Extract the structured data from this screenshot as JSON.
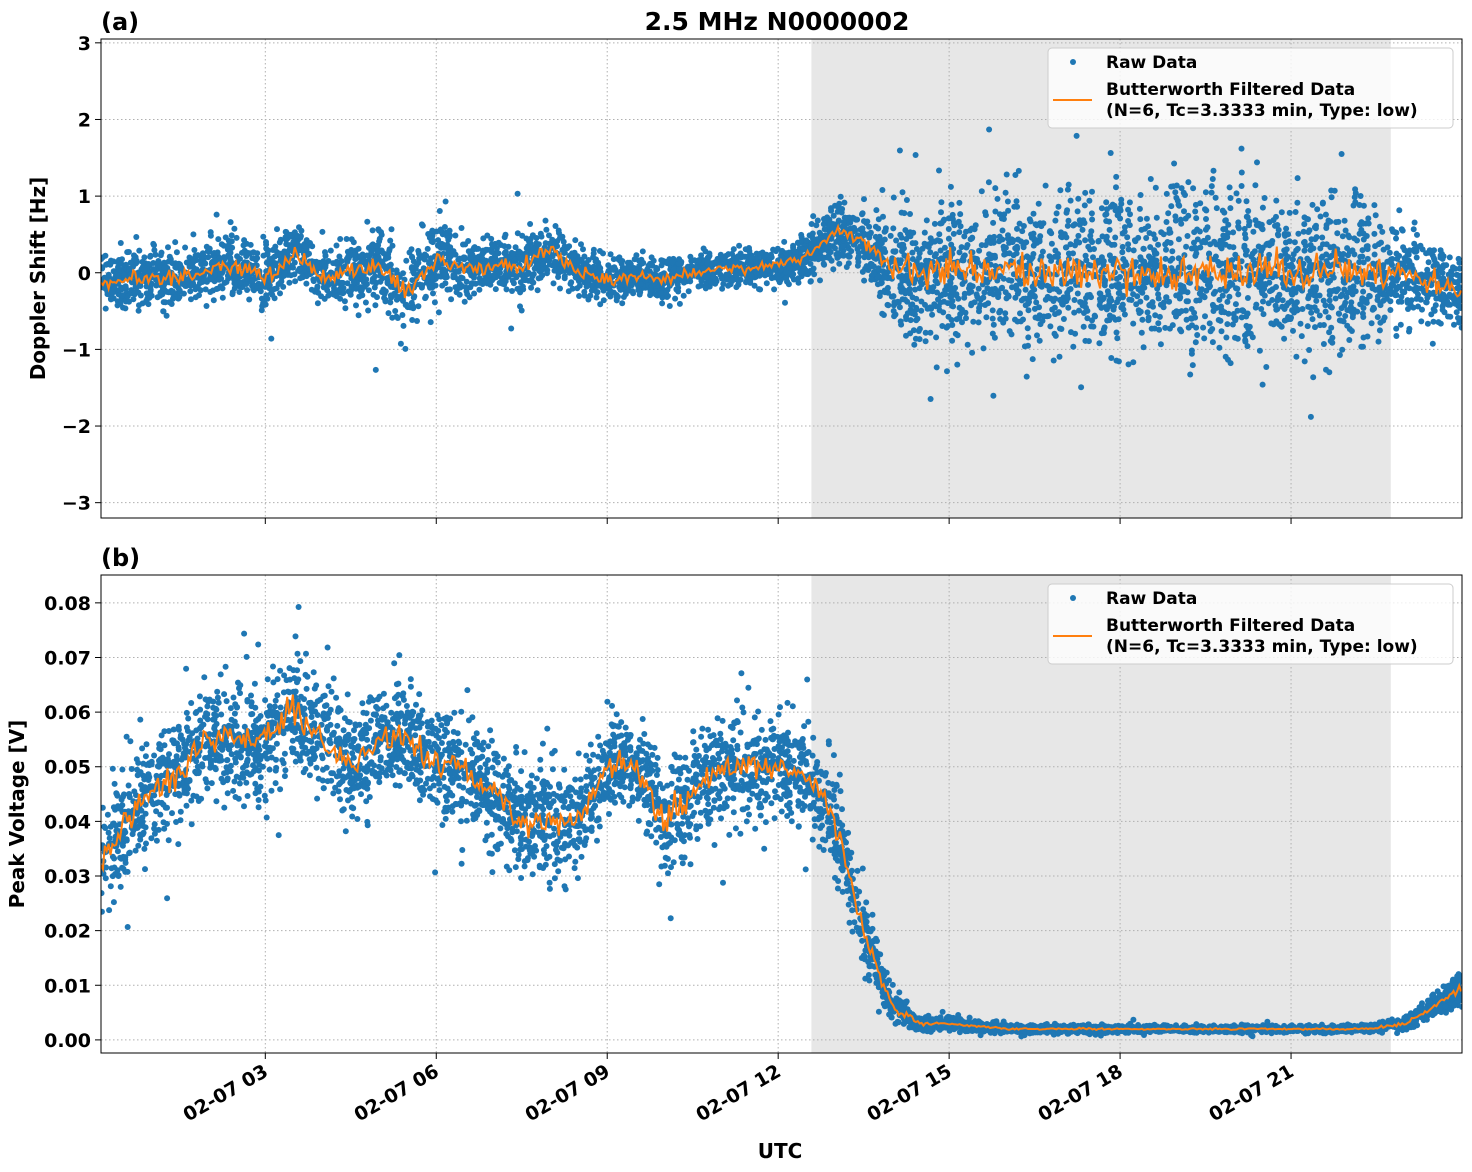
{
  "figure_title": "2.5 MHz N0000002",
  "xlabel": "UTC",
  "colors": {
    "raw": "#1f77b4",
    "filtered": "#ff7f0e",
    "shade": "#e7e7e7"
  },
  "chart_data": [
    {
      "type": "scatter",
      "panel_label": "(a)",
      "ylabel": "Doppler Shift [Hz]",
      "xlim": [
        "02-07 00:07",
        "02-08 00:00"
      ],
      "ylim": [
        -3.2,
        3.05
      ],
      "yticks": [
        -3,
        -2,
        -1,
        0,
        1,
        2,
        3
      ],
      "ytick_labels": [
        "−3",
        "−2",
        "−1",
        "0",
        "1",
        "2",
        "3"
      ],
      "xticks": [
        "02-07 03:00",
        "02-07 06:00",
        "02-07 09:00",
        "02-07 12:00",
        "02-07 15:00",
        "02-07 18:00",
        "02-07 21:00"
      ],
      "xtick_labels": [
        "02-07 03",
        "02-07 06",
        "02-07 09",
        "02-07 12",
        "02-07 15",
        "02-07 18",
        "02-07 21"
      ],
      "grid": true,
      "legend_position": "top-right",
      "legend": [
        "Raw Data",
        "Butterworth Filtered Data",
        "(N=6, Tc=3.3333 min, Type: low)"
      ],
      "shaded_span": [
        "02-07 12:35",
        "02-07 22:45"
      ],
      "x": [
        "00:00",
        "00:30",
        "01:00",
        "01:30",
        "02:00",
        "02:30",
        "03:00",
        "03:30",
        "04:00",
        "04:30",
        "05:00",
        "05:30",
        "06:00",
        "06:30",
        "07:00",
        "07:30",
        "08:00",
        "08:30",
        "09:00",
        "09:30",
        "10:00",
        "10:30",
        "11:00",
        "11:30",
        "12:00",
        "12:30",
        "13:00",
        "13:30",
        "14:00",
        "14:30",
        "15:00",
        "15:30",
        "16:00",
        "16:30",
        "17:00",
        "17:30",
        "18:00",
        "18:30",
        "19:00",
        "19:30",
        "20:00",
        "20:30",
        "21:00",
        "21:30",
        "22:00",
        "22:30",
        "23:00",
        "23:30",
        "24:00"
      ],
      "series": [
        {
          "name": "Butterworth Filtered Data",
          "kind": "line",
          "values": [
            -0.15,
            -0.1,
            -0.05,
            -0.1,
            0.05,
            0.1,
            -0.1,
            0.25,
            -0.05,
            0.05,
            0.1,
            -0.3,
            0.2,
            0.05,
            0.1,
            0.1,
            0.3,
            0.0,
            -0.1,
            -0.05,
            -0.1,
            0.0,
            0.05,
            0.05,
            0.1,
            0.2,
            0.55,
            0.4,
            0.1,
            0.0,
            0.05,
            0.0,
            0.1,
            -0.05,
            0.05,
            0.0,
            0.05,
            -0.05,
            0.0,
            0.1,
            0.0,
            0.05,
            -0.05,
            0.05,
            0.0,
            0.05,
            0.0,
            -0.1,
            -0.3
          ]
        },
        {
          "name": "Raw Data",
          "kind": "scatter",
          "approx_spread": [
            0.45,
            0.45,
            0.5,
            0.45,
            0.5,
            0.5,
            0.55,
            0.5,
            0.45,
            0.55,
            0.6,
            0.75,
            0.65,
            0.5,
            0.45,
            0.5,
            0.5,
            0.4,
            0.35,
            0.35,
            0.35,
            0.3,
            0.3,
            0.3,
            0.3,
            0.4,
            0.5,
            0.5,
            1.0,
            1.2,
            1.2,
            1.25,
            1.25,
            1.25,
            1.25,
            1.3,
            1.3,
            1.3,
            1.3,
            1.3,
            1.3,
            1.25,
            1.25,
            1.25,
            1.2,
            1.1,
            0.9,
            0.7,
            0.55
          ]
        }
      ]
    },
    {
      "type": "scatter",
      "panel_label": "(b)",
      "ylabel": "Peak Voltage [V]",
      "xlim": [
        "02-07 00:07",
        "02-08 00:00"
      ],
      "ylim": [
        -0.0024,
        0.0851
      ],
      "yticks": [
        0,
        0.01,
        0.02,
        0.03,
        0.04,
        0.05,
        0.06,
        0.07,
        0.08
      ],
      "ytick_labels": [
        "0.00",
        "0.01",
        "0.02",
        "0.03",
        "0.04",
        "0.05",
        "0.06",
        "0.07",
        "0.08"
      ],
      "xticks": [
        "02-07 03:00",
        "02-07 06:00",
        "02-07 09:00",
        "02-07 12:00",
        "02-07 15:00",
        "02-07 18:00",
        "02-07 21:00"
      ],
      "xtick_labels": [
        "02-07 03",
        "02-07 06",
        "02-07 09",
        "02-07 12",
        "02-07 15",
        "02-07 18",
        "02-07 21"
      ],
      "grid": true,
      "legend_position": "top-right",
      "legend": [
        "Raw Data",
        "Butterworth Filtered Data",
        "(N=6, Tc=3.3333 min, Type: low)"
      ],
      "shaded_span": [
        "02-07 12:35",
        "02-07 22:45"
      ],
      "x": [
        "00:00",
        "00:30",
        "01:00",
        "01:30",
        "02:00",
        "02:30",
        "03:00",
        "03:30",
        "04:00",
        "04:30",
        "05:00",
        "05:30",
        "06:00",
        "06:30",
        "07:00",
        "07:30",
        "08:00",
        "08:30",
        "09:00",
        "09:30",
        "10:00",
        "10:30",
        "11:00",
        "11:30",
        "12:00",
        "12:30",
        "13:00",
        "13:30",
        "14:00",
        "14:30",
        "15:00",
        "15:30",
        "16:00",
        "16:30",
        "17:00",
        "17:30",
        "18:00",
        "18:30",
        "19:00",
        "19:30",
        "20:00",
        "20:30",
        "21:00",
        "21:30",
        "22:00",
        "22:30",
        "23:00",
        "23:30",
        "24:00"
      ],
      "series": [
        {
          "name": "Butterworth Filtered Data",
          "kind": "line",
          "values": [
            0.03,
            0.04,
            0.045,
            0.05,
            0.055,
            0.055,
            0.055,
            0.06,
            0.055,
            0.05,
            0.055,
            0.055,
            0.05,
            0.05,
            0.045,
            0.04,
            0.04,
            0.04,
            0.05,
            0.05,
            0.04,
            0.045,
            0.05,
            0.05,
            0.05,
            0.048,
            0.04,
            0.02,
            0.006,
            0.003,
            0.003,
            0.0025,
            0.002,
            0.002,
            0.002,
            0.002,
            0.002,
            0.002,
            0.002,
            0.002,
            0.002,
            0.002,
            0.002,
            0.002,
            0.002,
            0.0022,
            0.003,
            0.006,
            0.01
          ]
        },
        {
          "name": "Raw Data",
          "kind": "scatter",
          "approx_spread": [
            0.012,
            0.013,
            0.013,
            0.013,
            0.013,
            0.013,
            0.014,
            0.014,
            0.013,
            0.013,
            0.013,
            0.013,
            0.013,
            0.013,
            0.013,
            0.013,
            0.013,
            0.013,
            0.013,
            0.013,
            0.013,
            0.013,
            0.013,
            0.013,
            0.013,
            0.012,
            0.011,
            0.009,
            0.004,
            0.0018,
            0.0015,
            0.0012,
            0.001,
            0.001,
            0.001,
            0.001,
            0.0008,
            0.0008,
            0.0008,
            0.0008,
            0.0008,
            0.0008,
            0.0008,
            0.0008,
            0.0009,
            0.001,
            0.0015,
            0.003,
            0.004
          ]
        }
      ]
    }
  ]
}
